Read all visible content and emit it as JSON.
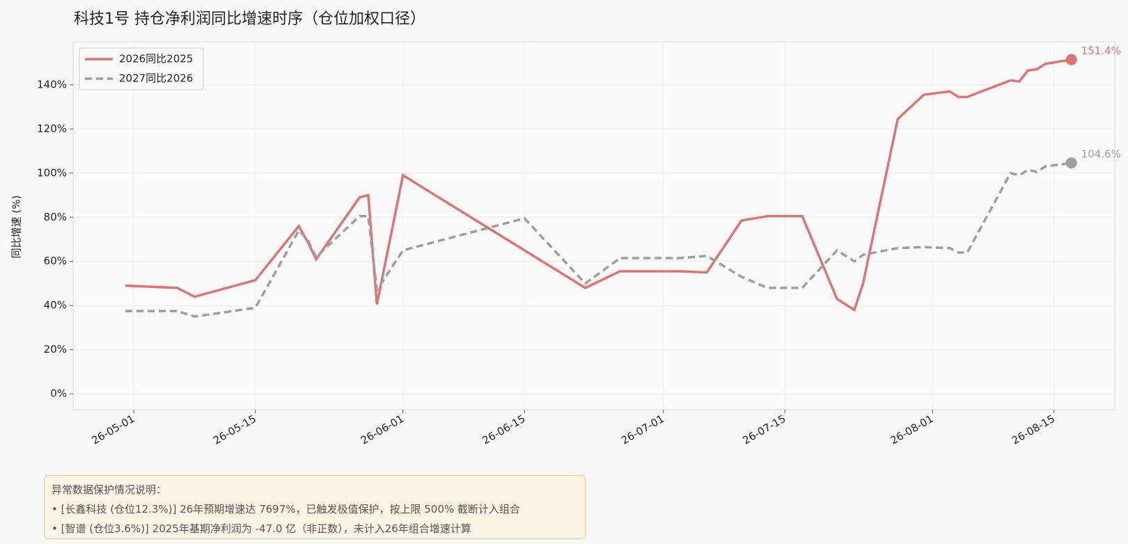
{
  "chart_data": {
    "type": "line",
    "title": "科技1号  持仓净利润同比增速时序（仓位加权口径）",
    "y_label": "同比增速 (%)",
    "x": [
      "26-04-30",
      "26-05-06",
      "26-05-08",
      "26-05-15",
      "26-05-20",
      "26-05-21",
      "26-05-22",
      "26-05-27",
      "26-05-28",
      "26-05-29",
      "26-06-01",
      "26-06-15",
      "26-06-22",
      "26-06-26",
      "26-07-03",
      "26-07-06",
      "26-07-10",
      "26-07-13",
      "26-07-17",
      "26-07-21",
      "26-07-23",
      "26-07-24",
      "26-07-28",
      "26-07-31",
      "26-08-03",
      "26-08-04",
      "26-08-05",
      "26-08-10",
      "26-08-11",
      "26-08-12",
      "26-08-13",
      "26-08-14",
      "26-08-17"
    ],
    "series": [
      {
        "name": "2026同比2025",
        "color": "#e07272",
        "style": "solid",
        "end_label": "151.4%",
        "values": [
          49,
          48,
          44,
          51.5,
          76,
          69,
          61,
          89,
          90,
          40.5,
          99,
          65,
          48,
          55.5,
          55.5,
          55,
          78.5,
          80.5,
          80.5,
          43,
          38,
          50,
          124.5,
          135.5,
          137,
          134.5,
          134.5,
          142,
          141.5,
          146.5,
          147,
          149.5,
          151.4
        ]
      },
      {
        "name": "2027同比2026",
        "color": "#9e9e9e",
        "style": "dashed",
        "end_label": "104.6%",
        "values": [
          37.5,
          37.5,
          35,
          39,
          74,
          70,
          62,
          80.5,
          80.5,
          47,
          65,
          79.5,
          50,
          61.5,
          61.5,
          62.5,
          53,
          48,
          48,
          65,
          60,
          63,
          66,
          66.5,
          66,
          64,
          64,
          100,
          99,
          101.5,
          100.5,
          103,
          104.6
        ]
      }
    ],
    "xlim": [
      "26-04-24",
      "26-08-22"
    ],
    "xticks": [
      "26-05-01",
      "26-05-15",
      "26-06-01",
      "26-06-15",
      "26-07-01",
      "26-07-15",
      "26-08-01",
      "26-08-15"
    ],
    "ylim": [
      -7.2,
      159.5
    ],
    "yticks": [
      {
        "value": 0,
        "label": "0%"
      },
      {
        "value": 20,
        "label": "20%"
      },
      {
        "value": 40,
        "label": "40%"
      },
      {
        "value": 60,
        "label": "60%"
      },
      {
        "value": 80,
        "label": "80%"
      },
      {
        "value": 100,
        "label": "100%"
      },
      {
        "value": 120,
        "label": "120%"
      },
      {
        "value": 140,
        "label": "140%"
      }
    ],
    "grid": true,
    "legend": "upper-left"
  },
  "notes": {
    "title": "异常数据保护情况说明：",
    "items": [
      "• [长鑫科技 (仓位12.3%)] 26年预期增速达 7697%，已触发极值保护，按上限 500% 截断计入组合",
      "• [智谱 (仓位3.6%)] 2025年基期净利润为 -47.0 亿（非正数），未计入26年组合增速计算"
    ]
  }
}
